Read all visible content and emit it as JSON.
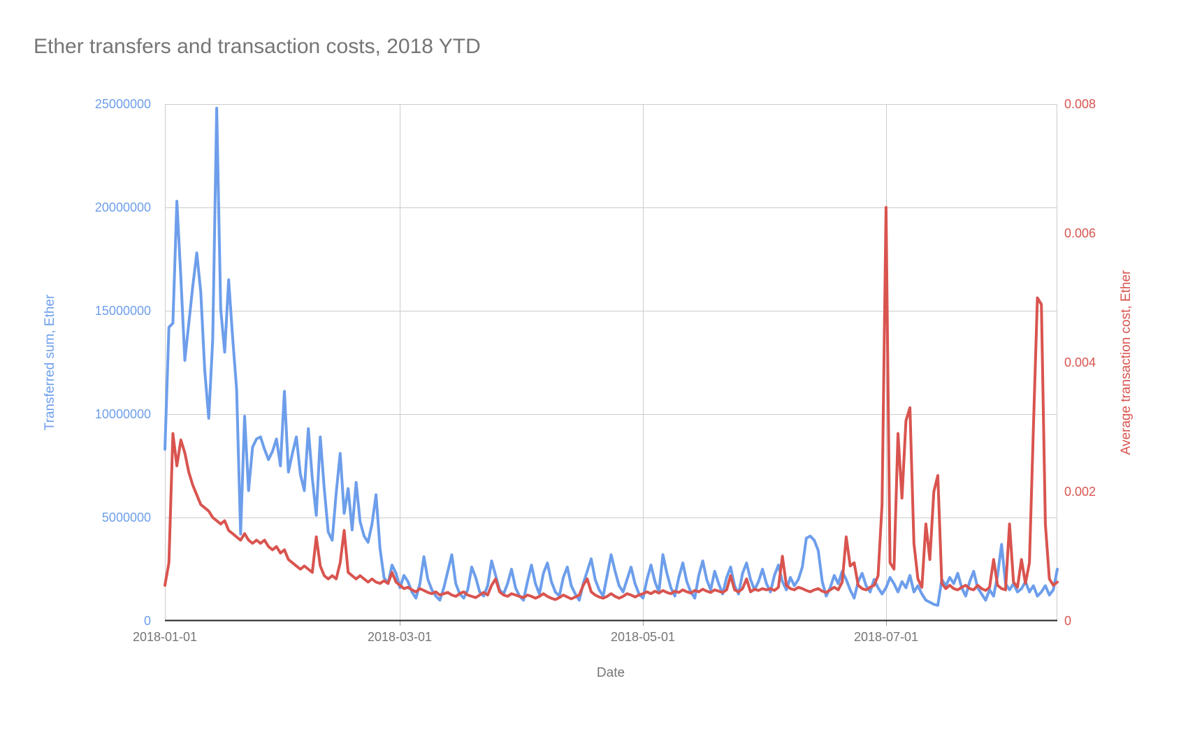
{
  "title": {
    "text": "Ether transfers and transaction costs, 2018 YTD",
    "color": "#757575"
  },
  "chart_data": {
    "type": "line",
    "title": "Ether transfers and transaction costs, 2018 YTD",
    "xlabel": "Date",
    "x_start_date": "2018-01-01",
    "x_end_date": "2018-08-13",
    "frequency": "daily",
    "grid": true,
    "legend_position": "none",
    "x_ticks": [
      {
        "label": "2018-01-01",
        "day_offset": 0
      },
      {
        "label": "2018-03-01",
        "day_offset": 59
      },
      {
        "label": "2018-05-01",
        "day_offset": 120
      },
      {
        "label": "2018-07-01",
        "day_offset": 181
      }
    ],
    "y_left": {
      "label": "Transferred sum, Ether",
      "color": "#6d9eeb",
      "min": 0,
      "max": 25000000,
      "ticks": [
        "25000000",
        "20000000",
        "15000000",
        "10000000",
        "5000000",
        "0"
      ]
    },
    "y_right": {
      "label": "Average transaction cost, Ether",
      "color": "#d9544f",
      "min": 0,
      "max": 0.008,
      "ticks": [
        "0.008",
        "0.006",
        "0.004",
        "0.002",
        "0"
      ]
    },
    "series": [
      {
        "name": "Transferred sum, Ether",
        "axis": "left",
        "color": "#6d9eeb",
        "values": [
          8300000.0,
          14200000.0,
          14400000.0,
          20300000.0,
          16600000.0,
          12600000.0,
          14400000.0,
          16200000.0,
          17800000.0,
          15900000.0,
          12100000.0,
          9800000.0,
          13600000.0,
          24800000.0,
          15100000.0,
          13000000.0,
          16500000.0,
          13700000.0,
          11200000.0,
          4200000.0,
          9900000.0,
          6300000.0,
          8400000.0,
          8800000.0,
          8900000.0,
          8300000.0,
          7800000.0,
          8200000.0,
          8800000.0,
          7500000.0,
          11100000.0,
          7200000.0,
          8100000.0,
          8900000.0,
          7100000.0,
          6300000.0,
          9300000.0,
          6900000.0,
          5100000.0,
          8900000.0,
          6400000.0,
          4300000.0,
          3900000.0,
          6200000.0,
          8100000.0,
          5200000.0,
          6400000.0,
          4400000.0,
          6700000.0,
          4800000.0,
          4100000.0,
          3800000.0,
          4700000.0,
          6100000.0,
          3500000.0,
          2100000.0,
          1800000.0,
          2700000.0,
          2300000.0,
          1600000.0,
          2200000.0,
          1900000.0,
          1400000.0,
          1100000.0,
          1800000.0,
          3100000.0,
          2000000.0,
          1500000.0,
          1200000.0,
          1000000.0,
          1600000.0,
          2400000.0,
          3200000.0,
          1800000.0,
          1300000.0,
          1100000.0,
          1500000.0,
          2600000.0,
          2100000.0,
          1400000.0,
          1200000.0,
          1700000.0,
          2900000.0,
          2200000.0,
          1500000.0,
          1300000.0,
          1800000.0,
          2500000.0,
          1600000.0,
          1200000.0,
          1000000.0,
          1900000.0,
          2700000.0,
          1800000.0,
          1300000.0,
          2300000.0,
          2800000.0,
          1900000.0,
          1400000.0,
          1200000.0,
          2100000.0,
          2600000.0,
          1700000.0,
          1300000.0,
          1000000.0,
          1800000.0,
          2400000.0,
          3000000.0,
          2000000.0,
          1500000.0,
          1200000.0,
          2200000.0,
          3200000.0,
          2400000.0,
          1700000.0,
          1400000.0,
          2000000.0,
          2600000.0,
          1800000.0,
          1300000.0,
          1100000.0,
          2000000.0,
          2700000.0,
          1900000.0,
          1400000.0,
          3200000.0,
          2300000.0,
          1600000.0,
          1200000.0,
          2100000.0,
          2800000.0,
          1900000.0,
          1400000.0,
          1100000.0,
          2200000.0,
          2900000.0,
          2000000.0,
          1500000.0,
          2400000.0,
          1800000.0,
          1300000.0,
          2100000.0,
          2600000.0,
          1700000.0,
          1300000.0,
          2300000.0,
          2800000.0,
          2000000.0,
          1500000.0,
          1900000.0,
          2500000.0,
          1800000.0,
          1400000.0,
          2200000.0,
          2700000.0,
          1900000.0,
          1500000.0,
          2100000.0,
          1700000.0,
          2000000.0,
          2600000.0,
          4000000.0,
          4100000.0,
          3900000.0,
          3400000.0,
          1900000.0,
          1200000.0,
          1600000.0,
          2200000.0,
          1800000.0,
          2400000.0,
          2000000.0,
          1500000.0,
          1100000.0,
          1900000.0,
          2300000.0,
          1700000.0,
          1400000.0,
          2000000.0,
          1600000.0,
          1300000.0,
          1600000.0,
          2100000.0,
          1800000.0,
          1400000.0,
          1900000.0,
          1600000.0,
          2200000.0,
          1400000.0,
          1700000.0,
          1300000.0,
          1000000.0,
          900000.0,
          800000.0,
          750000.0,
          2000000.0,
          1700000.0,
          2100000.0,
          1800000.0,
          2300000.0,
          1600000.0,
          1200000.0,
          1900000.0,
          2400000.0,
          1600000.0,
          1300000.0,
          1000000.0,
          1500000.0,
          1200000.0,
          2200000.0,
          3700000.0,
          1800000.0,
          1500000.0,
          1800000.0,
          1400000.0,
          1550000.0,
          1900000.0,
          1400000.0,
          1700000.0,
          1200000.0,
          1400000.0,
          1700000.0,
          1250000.0,
          1500000.0,
          2500000.0
        ]
      },
      {
        "name": "Average transaction cost, Ether",
        "axis": "right",
        "color": "#d9544f",
        "values": [
          0.00055,
          0.0009,
          0.0029,
          0.0024,
          0.0028,
          0.0026,
          0.0023,
          0.0021,
          0.00195,
          0.0018,
          0.00175,
          0.0017,
          0.0016,
          0.00155,
          0.0015,
          0.00155,
          0.0014,
          0.00135,
          0.0013,
          0.00125,
          0.00135,
          0.00125,
          0.0012,
          0.00125,
          0.0012,
          0.00125,
          0.00115,
          0.0011,
          0.00115,
          0.00105,
          0.0011,
          0.00095,
          0.0009,
          0.00085,
          0.0008,
          0.00085,
          0.0008,
          0.00075,
          0.0013,
          0.00085,
          0.0007,
          0.00065,
          0.0007,
          0.00065,
          0.0009,
          0.0014,
          0.00075,
          0.0007,
          0.00065,
          0.0007,
          0.00065,
          0.0006,
          0.00065,
          0.0006,
          0.00058,
          0.00062,
          0.00058,
          0.00075,
          0.0006,
          0.00055,
          0.0005,
          0.00052,
          0.00048,
          0.00045,
          0.0005,
          0.00047,
          0.00044,
          0.00042,
          0.00045,
          0.0004,
          0.00042,
          0.00044,
          0.0004,
          0.00038,
          0.00042,
          0.00045,
          0.0004,
          0.00038,
          0.00036,
          0.0004,
          0.00044,
          0.0004,
          0.00055,
          0.00065,
          0.00045,
          0.0004,
          0.00038,
          0.00042,
          0.0004,
          0.00038,
          0.00036,
          0.0004,
          0.00038,
          0.00035,
          0.00038,
          0.00042,
          0.00038,
          0.00035,
          0.00033,
          0.00036,
          0.0004,
          0.00037,
          0.00034,
          0.00037,
          0.0004,
          0.00055,
          0.00065,
          0.00045,
          0.0004,
          0.00037,
          0.00035,
          0.00038,
          0.00042,
          0.00038,
          0.00035,
          0.00038,
          0.00042,
          0.0004,
          0.00037,
          0.0004,
          0.00042,
          0.00045,
          0.00042,
          0.00046,
          0.00043,
          0.00047,
          0.00044,
          0.00042,
          0.00046,
          0.00044,
          0.00048,
          0.00045,
          0.00043,
          0.00047,
          0.00045,
          0.00049,
          0.00046,
          0.00044,
          0.00048,
          0.00046,
          0.00044,
          0.00048,
          0.0007,
          0.00048,
          0.00045,
          0.0005,
          0.00065,
          0.00045,
          0.00049,
          0.00047,
          0.0005,
          0.00048,
          0.0005,
          0.00047,
          0.00052,
          0.001,
          0.00055,
          0.0005,
          0.00048,
          0.00052,
          0.0005,
          0.00047,
          0.00045,
          0.00048,
          0.0005,
          0.00046,
          0.00044,
          0.00048,
          0.00052,
          0.00048,
          0.0006,
          0.0013,
          0.00085,
          0.0009,
          0.00055,
          0.0005,
          0.00048,
          0.00052,
          0.00055,
          0.0007,
          0.0018,
          0.0064,
          0.0009,
          0.0008,
          0.0029,
          0.0019,
          0.0031,
          0.0033,
          0.0012,
          0.00065,
          0.00052,
          0.0015,
          0.00095,
          0.002,
          0.00225,
          0.00058,
          0.0005,
          0.00055,
          0.0005,
          0.00048,
          0.00052,
          0.00055,
          0.0005,
          0.00048,
          0.00055,
          0.0005,
          0.00047,
          0.00052,
          0.00095,
          0.00055,
          0.0005,
          0.00048,
          0.0015,
          0.0006,
          0.00052,
          0.00095,
          0.00058,
          0.0009,
          0.003,
          0.005,
          0.0049,
          0.0015,
          0.00065,
          0.00055,
          0.0006
        ]
      }
    ],
    "colors": {
      "grid": "#cccccc",
      "axis_line": "#212121",
      "title_text": "#757575"
    }
  }
}
